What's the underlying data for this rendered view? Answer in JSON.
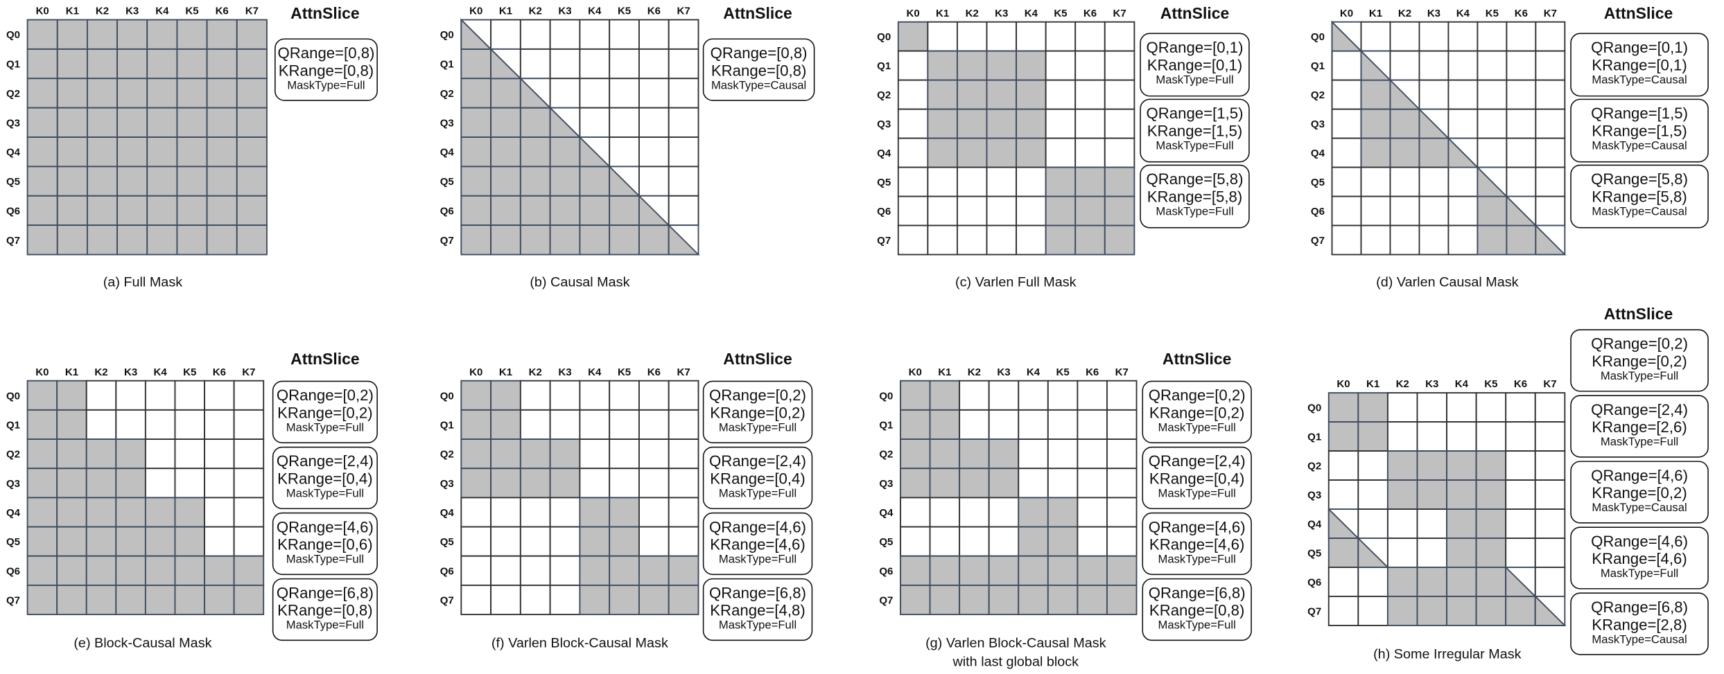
{
  "colors": {
    "masked_cell": "#c0c0c0",
    "grid_line_masked": "#3f4c60",
    "grid_line": "#333333",
    "background": "#ffffff"
  },
  "col_labels": [
    "K0",
    "K1",
    "K2",
    "K3",
    "K4",
    "K5",
    "K6",
    "K7"
  ],
  "row_labels": [
    "Q0",
    "Q1",
    "Q2",
    "Q3",
    "Q4",
    "Q5",
    "Q6",
    "Q7"
  ],
  "panels": [
    {
      "id": "a",
      "title": "AttnSlice",
      "caption": [
        "(a) Full Mask"
      ],
      "slices": [
        {
          "q": "QRange=[0,8)",
          "k": "KRange=[0,8)",
          "mask": "MaskType=Full"
        }
      ]
    },
    {
      "id": "b",
      "title": "AttnSlice",
      "caption": [
        "(b) Causal Mask"
      ],
      "slices": [
        {
          "q": "QRange=[0,8)",
          "k": "KRange=[0,8)",
          "mask": "MaskType=Causal"
        }
      ]
    },
    {
      "id": "c",
      "title": "AttnSlice",
      "caption": [
        "(c) Varlen Full Mask"
      ],
      "slices": [
        {
          "q": "QRange=[0,1)",
          "k": "KRange=[0,1)",
          "mask": "MaskType=Full"
        },
        {
          "q": "QRange=[1,5)",
          "k": "KRange=[1,5)",
          "mask": "MaskType=Full"
        },
        {
          "q": "QRange=[5,8)",
          "k": "KRange=[5,8)",
          "mask": "MaskType=Full"
        }
      ]
    },
    {
      "id": "d",
      "title": "AttnSlice",
      "caption": [
        "(d) Varlen Causal Mask"
      ],
      "slices": [
        {
          "q": "QRange=[0,1)",
          "k": "KRange=[0,1)",
          "mask": "MaskType=Causal"
        },
        {
          "q": "QRange=[1,5)",
          "k": "KRange=[1,5)",
          "mask": "MaskType=Causal"
        },
        {
          "q": "QRange=[5,8)",
          "k": "KRange=[5,8)",
          "mask": "MaskType=Causal"
        }
      ]
    },
    {
      "id": "e",
      "title": "AttnSlice",
      "caption": [
        "(e) Block-Causal Mask"
      ],
      "slices": [
        {
          "q": "QRange=[0,2)",
          "k": "KRange=[0,2)",
          "mask": "MaskType=Full"
        },
        {
          "q": "QRange=[2,4)",
          "k": "KRange=[0,4)",
          "mask": "MaskType=Full"
        },
        {
          "q": "QRange=[4,6)",
          "k": "KRange=[0,6)",
          "mask": "MaskType=Full"
        },
        {
          "q": "QRange=[6,8)",
          "k": "KRange=[0,8)",
          "mask": "MaskType=Full"
        }
      ]
    },
    {
      "id": "f",
      "title": "AttnSlice",
      "caption": [
        "(f) Varlen Block-Causal Mask"
      ],
      "slices": [
        {
          "q": "QRange=[0,2)",
          "k": "KRange=[0,2)",
          "mask": "MaskType=Full"
        },
        {
          "q": "QRange=[2,4)",
          "k": "KRange=[0,4)",
          "mask": "MaskType=Full"
        },
        {
          "q": "QRange=[4,6)",
          "k": "KRange=[4,6)",
          "mask": "MaskType=Full"
        },
        {
          "q": "QRange=[6,8)",
          "k": "KRange=[4,8)",
          "mask": "MaskType=Full"
        }
      ]
    },
    {
      "id": "g",
      "title": "AttnSlice",
      "caption": [
        "(g) Varlen Block-Causal Mask",
        "with last global block"
      ],
      "slices": [
        {
          "q": "QRange=[0,2)",
          "k": "KRange=[0,2)",
          "mask": "MaskType=Full"
        },
        {
          "q": "QRange=[2,4)",
          "k": "KRange=[0,4)",
          "mask": "MaskType=Full"
        },
        {
          "q": "QRange=[4,6)",
          "k": "KRange=[4,6)",
          "mask": "MaskType=Full"
        },
        {
          "q": "QRange=[6,8)",
          "k": "KRange=[0,8)",
          "mask": "MaskType=Full"
        }
      ]
    },
    {
      "id": "h",
      "title": "AttnSlice",
      "caption": [
        "(h) Some Irregular Mask"
      ],
      "slices": [
        {
          "q": "QRange=[0,2)",
          "k": "KRange=[0,2)",
          "mask": "MaskType=Full"
        },
        {
          "q": "QRange=[2,4)",
          "k": "KRange=[2,6)",
          "mask": "MaskType=Full"
        },
        {
          "q": "QRange=[4,6)",
          "k": "KRange=[0,2)",
          "mask": "MaskType=Causal"
        },
        {
          "q": "QRange=[4,6)",
          "k": "KRange=[4,6)",
          "mask": "MaskType=Full"
        },
        {
          "q": "QRange=[6,8)",
          "k": "KRange=[2,8)",
          "mask": "MaskType=Causal"
        }
      ]
    }
  ]
}
